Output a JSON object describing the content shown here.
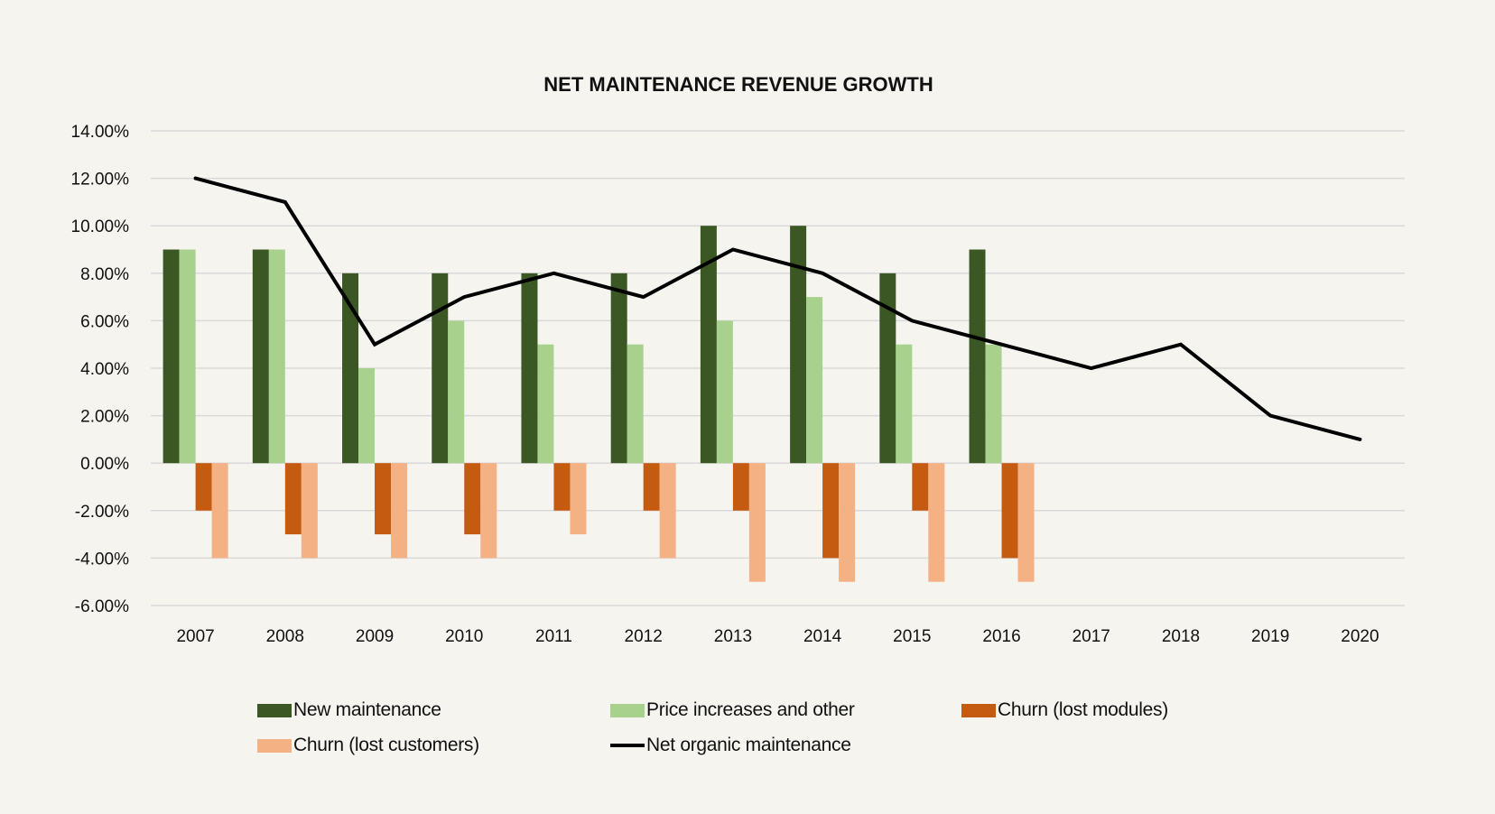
{
  "chart_data": {
    "type": "bar",
    "title": "NET MAINTENANCE REVENUE GROWTH",
    "xlabel": "",
    "ylabel": "",
    "ylim": [
      -6,
      14
    ],
    "y_tick_step": 2,
    "y_tick_labels": [
      "14.00%",
      "12.00%",
      "10.00%",
      "8.00%",
      "6.00%",
      "4.00%",
      "2.00%",
      "0.00%",
      "-2.00%",
      "-4.00%",
      "-6.00%"
    ],
    "grid": true,
    "legend_position": "bottom",
    "categories": [
      "2007",
      "2008",
      "2009",
      "2010",
      "2011",
      "2012",
      "2013",
      "2014",
      "2015",
      "2016",
      "2017",
      "2018",
      "2019",
      "2020"
    ],
    "series": [
      {
        "name": "New maintenance",
        "type": "bar",
        "color": "#3a5724",
        "values": [
          9,
          9,
          8,
          8,
          8,
          8,
          10,
          10,
          8,
          9,
          null,
          null,
          null,
          null
        ]
      },
      {
        "name": "Price increases and other",
        "type": "bar",
        "color": "#a9d18e",
        "values": [
          9,
          9,
          4,
          6,
          5,
          5,
          6,
          7,
          5,
          5,
          null,
          null,
          null,
          null
        ]
      },
      {
        "name": "Churn (lost modules)",
        "type": "bar",
        "color": "#c55a11",
        "values": [
          -2,
          -3,
          -3,
          -3,
          -2,
          -2,
          -2,
          -4,
          -2,
          -4,
          null,
          null,
          null,
          null
        ]
      },
      {
        "name": "Churn (lost customers)",
        "type": "bar",
        "color": "#f4b183",
        "values": [
          -4,
          -4,
          -4,
          -4,
          -3,
          -4,
          -5,
          -5,
          -5,
          -5,
          null,
          null,
          null,
          null
        ]
      },
      {
        "name": "Net organic maintenance",
        "type": "line",
        "color": "#000000",
        "values": [
          12,
          11,
          5,
          7,
          8,
          7,
          9,
          8,
          6,
          5,
          4,
          5,
          2,
          1
        ]
      }
    ],
    "units": "percent"
  },
  "legend": {
    "items": [
      {
        "label": "New maintenance",
        "kind": "bar",
        "color": "#3a5724"
      },
      {
        "label": "Price increases and other",
        "kind": "bar",
        "color": "#a9d18e"
      },
      {
        "label": "Churn (lost modules)",
        "kind": "bar",
        "color": "#c55a11"
      },
      {
        "label": "Churn (lost customers)",
        "kind": "bar",
        "color": "#f4b183"
      },
      {
        "label": "Net organic maintenance",
        "kind": "line",
        "color": "#000000"
      }
    ]
  },
  "colors": {
    "background": "#f5f4ef",
    "gridline": "#d9d9d9",
    "text": "#111111"
  }
}
